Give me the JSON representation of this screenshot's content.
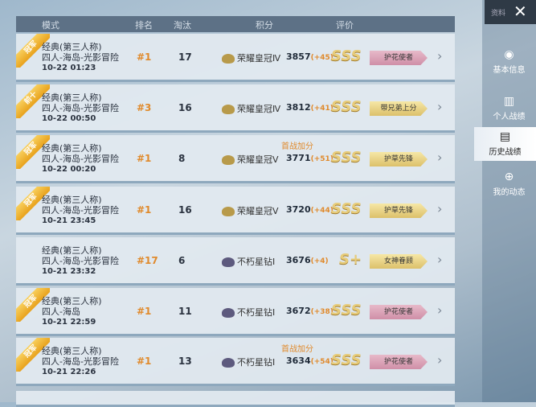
{
  "header": {
    "mode": "模式",
    "rank": "排名",
    "kills": "淘汰",
    "score": "积分",
    "rating": "评价"
  },
  "top": {
    "label": "资料",
    "close": "✕"
  },
  "nav": [
    {
      "label": "基本信息",
      "icon": "profile-icon"
    },
    {
      "label": "个人战绩",
      "icon": "stats-icon"
    },
    {
      "label": "历史战绩",
      "icon": "history-icon",
      "active": true
    },
    {
      "label": "我的动态",
      "icon": "moments-icon"
    }
  ],
  "colors": {
    "accent": "#e08a2c",
    "pink_title": "#d9a3b8",
    "gold_title": "#ecd98e"
  },
  "matches": [
    {
      "badge": "冠军",
      "mode": "经典(第三人称)",
      "map": "四人-海岛-光影冒险",
      "time": "10-22 01:23",
      "rank": "#1",
      "kills": "17",
      "tier": "荣耀皇冠Ⅳ",
      "score": "3857",
      "delta": "(+45)",
      "bonus": "",
      "grade": "SSS",
      "title": "护花使者",
      "title_color": "pink"
    },
    {
      "badge": "前十",
      "mode": "经典(第三人称)",
      "map": "四人-海岛-光影冒险",
      "time": "10-22 00:50",
      "rank": "#3",
      "kills": "16",
      "tier": "荣耀皇冠Ⅳ",
      "score": "3812",
      "delta": "(+41)",
      "bonus": "",
      "grade": "SSS",
      "title": "带兄弟上分",
      "title_color": "gold"
    },
    {
      "badge": "冠军",
      "mode": "经典(第三人称)",
      "map": "四人-海岛-光影冒险",
      "time": "10-22 00:20",
      "rank": "#1",
      "kills": "8",
      "tier": "荣耀皇冠Ⅴ",
      "score": "3771",
      "delta": "(+51)",
      "bonus": "首战加分",
      "grade": "SSS",
      "title": "护草先锋",
      "title_color": "gold"
    },
    {
      "badge": "冠军",
      "mode": "经典(第三人称)",
      "map": "四人-海岛-光影冒险",
      "time": "10-21 23:45",
      "rank": "#1",
      "kills": "16",
      "tier": "荣耀皇冠Ⅴ",
      "score": "3720",
      "delta": "(+44)",
      "bonus": "",
      "grade": "SSS",
      "title": "护草先锋",
      "title_color": "gold"
    },
    {
      "badge": "",
      "mode": "经典(第三人称)",
      "map": "四人-海岛-光影冒险",
      "time": "10-21 23:32",
      "rank": "#17",
      "kills": "6",
      "tier": "不朽星钻Ⅰ",
      "score": "3676",
      "delta": "(+4)",
      "bonus": "",
      "grade": "S+",
      "title": "女神眷顾",
      "title_color": "gold"
    },
    {
      "badge": "冠军",
      "mode": "经典(第三人称)",
      "map": "四人-海岛",
      "time": "10-21 22:59",
      "rank": "#1",
      "kills": "11",
      "tier": "不朽星钻Ⅰ",
      "score": "3672",
      "delta": "(+38)",
      "bonus": "",
      "grade": "SSS",
      "title": "护花使者",
      "title_color": "pink"
    },
    {
      "badge": "冠军",
      "mode": "经典(第三人称)",
      "map": "四人-海岛-光影冒险",
      "time": "10-21 22:26",
      "rank": "#1",
      "kills": "13",
      "tier": "不朽星钻Ⅰ",
      "score": "3634",
      "delta": "(+54)",
      "bonus": "首战加分",
      "grade": "SSS",
      "title": "护花使者",
      "title_color": "pink"
    }
  ]
}
